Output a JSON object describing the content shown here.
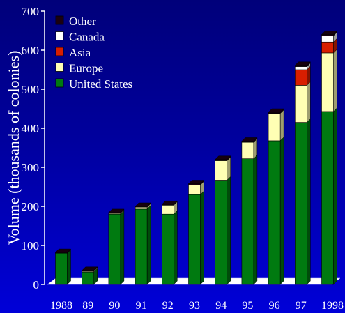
{
  "chart_data": {
    "type": "bar",
    "stacked": true,
    "title": "",
    "xlabel": "",
    "ylabel": "Volume (thousands of colonies)",
    "ylim": [
      0,
      700
    ],
    "yticks": [
      0,
      100,
      200,
      300,
      400,
      500,
      600,
      700
    ],
    "grid": false,
    "legend_position": "top-left",
    "categories": [
      "1988",
      "89",
      "90",
      "91",
      "92",
      "93",
      "94",
      "95",
      "96",
      "97",
      "1998"
    ],
    "series": [
      {
        "name": "United States",
        "color": "#007a10",
        "values": [
          80,
          32,
          180,
          193,
          180,
          230,
          267,
          322,
          368,
          415,
          443
        ]
      },
      {
        "name": "Europe",
        "color": "#ffffb4",
        "values": [
          0,
          2,
          2,
          5,
          23,
          25,
          50,
          42,
          70,
          95,
          150
        ]
      },
      {
        "name": "Asia",
        "color": "#d81e00",
        "values": [
          0,
          0,
          0,
          0,
          0,
          0,
          0,
          0,
          0,
          40,
          28
        ]
      },
      {
        "name": "Canada",
        "color": "#ffffff",
        "values": [
          0,
          0,
          0,
          0,
          0,
          0,
          0,
          0,
          0,
          8,
          16
        ]
      },
      {
        "name": "Other",
        "color": "#1a0010",
        "values": [
          2,
          2,
          2,
          2,
          2,
          3,
          3,
          3,
          3,
          3,
          3
        ]
      }
    ]
  }
}
